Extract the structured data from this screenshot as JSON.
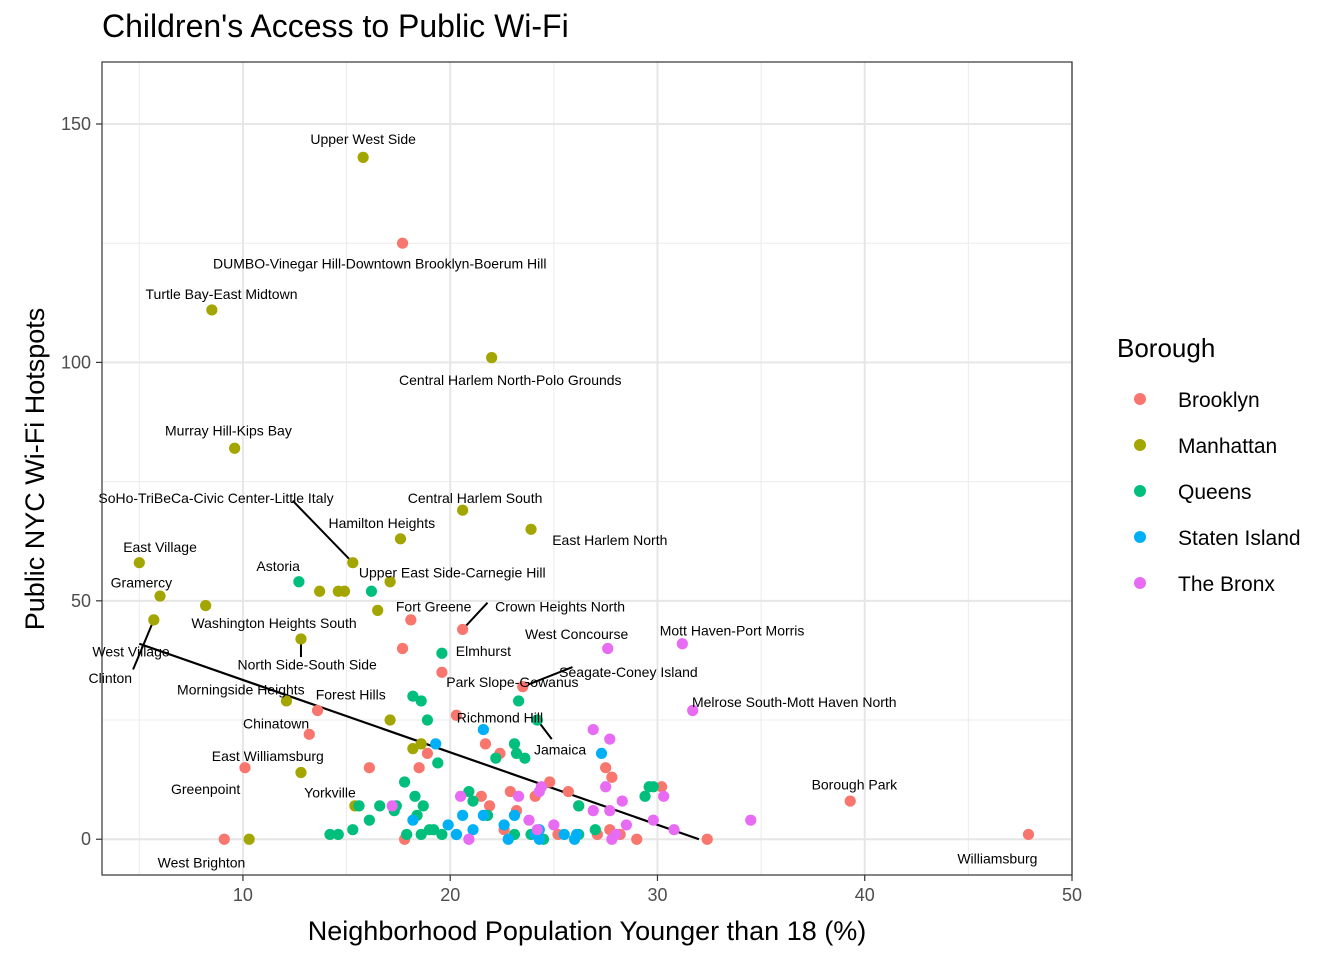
{
  "chart_data": {
    "type": "scatter",
    "title": "Children's Access to Public Wi-Fi",
    "xlabel": "Neighborhood Population Younger than 18 (%)",
    "ylabel": "Public NYC Wi-Fi Hotspots",
    "xlim": [
      3.2,
      50
    ],
    "ylim": [
      -7.5,
      163
    ],
    "x_ticks": [
      10,
      20,
      30,
      40,
      50
    ],
    "y_ticks": [
      0,
      50,
      100,
      150
    ],
    "grid": true,
    "legend": {
      "title": "Borough",
      "position": "right"
    },
    "colors": {
      "Brooklyn": "#F8766D",
      "Manhattan": "#A3A500",
      "Queens": "#00BF7D",
      "Staten Island": "#00B0F6",
      "The Bronx": "#E76BF3"
    },
    "series": [
      {
        "name": "Brooklyn",
        "points": [
          [
            17.7,
            125
          ],
          [
            18.1,
            46
          ],
          [
            17.7,
            40
          ],
          [
            19.6,
            35
          ],
          [
            20.6,
            44
          ],
          [
            23.5,
            32
          ],
          [
            20.3,
            26
          ],
          [
            13.6,
            27
          ],
          [
            13.2,
            22
          ],
          [
            16.1,
            15
          ],
          [
            10.1,
            15
          ],
          [
            9.1,
            0
          ],
          [
            18.9,
            18
          ],
          [
            18.5,
            15
          ],
          [
            21.7,
            20
          ],
          [
            22.4,
            18
          ],
          [
            21.5,
            9
          ],
          [
            21.9,
            7
          ],
          [
            22.9,
            10
          ],
          [
            23.2,
            6
          ],
          [
            24.1,
            9
          ],
          [
            24.8,
            12
          ],
          [
            25.7,
            10
          ],
          [
            27.5,
            15
          ],
          [
            27.8,
            13
          ],
          [
            26.2,
            7
          ],
          [
            27.1,
            1
          ],
          [
            27.7,
            2
          ],
          [
            28.2,
            1
          ],
          [
            29.0,
            0
          ],
          [
            30.2,
            11
          ],
          [
            32.4,
            0
          ],
          [
            39.3,
            8
          ],
          [
            47.9,
            1
          ],
          [
            17.8,
            0
          ],
          [
            22.6,
            2
          ],
          [
            25.2,
            1
          ]
        ]
      },
      {
        "name": "Manhattan",
        "points": [
          [
            15.8,
            143
          ],
          [
            8.5,
            111
          ],
          [
            22.0,
            101
          ],
          [
            9.6,
            82
          ],
          [
            20.6,
            69
          ],
          [
            23.9,
            65
          ],
          [
            17.6,
            63
          ],
          [
            15.3,
            58
          ],
          [
            5.0,
            58
          ],
          [
            6.0,
            51
          ],
          [
            8.2,
            49
          ],
          [
            5.7,
            46
          ],
          [
            12.8,
            42
          ],
          [
            13.7,
            52
          ],
          [
            14.6,
            52
          ],
          [
            14.9,
            52
          ],
          [
            17.1,
            54
          ],
          [
            16.5,
            48
          ],
          [
            12.1,
            29
          ],
          [
            17.1,
            25
          ],
          [
            18.2,
            19
          ],
          [
            18.6,
            20
          ],
          [
            12.8,
            14
          ],
          [
            15.4,
            7
          ],
          [
            10.3,
            0
          ]
        ]
      },
      {
        "name": "Queens",
        "points": [
          [
            12.7,
            54
          ],
          [
            16.2,
            52
          ],
          [
            19.6,
            39
          ],
          [
            18.2,
            30
          ],
          [
            18.6,
            29
          ],
          [
            23.3,
            29
          ],
          [
            24.2,
            25
          ],
          [
            18.9,
            25
          ],
          [
            19.4,
            16
          ],
          [
            17.8,
            12
          ],
          [
            18.3,
            9
          ],
          [
            18.7,
            7
          ],
          [
            16.6,
            7
          ],
          [
            17.3,
            6
          ],
          [
            17.4,
            7
          ],
          [
            16.1,
            4
          ],
          [
            15.6,
            7
          ],
          [
            14.2,
            1
          ],
          [
            14.6,
            1
          ],
          [
            15.3,
            2
          ],
          [
            17.9,
            1
          ],
          [
            18.4,
            5
          ],
          [
            18.6,
            1
          ],
          [
            19.0,
            2
          ],
          [
            19.6,
            1
          ],
          [
            20.3,
            1
          ],
          [
            21.1,
            8
          ],
          [
            21.8,
            5
          ],
          [
            22.2,
            17
          ],
          [
            23.1,
            20
          ],
          [
            23.2,
            18
          ],
          [
            23.6,
            17
          ],
          [
            23.1,
            1
          ],
          [
            23.9,
            1
          ],
          [
            24.5,
            0
          ],
          [
            26.2,
            7
          ],
          [
            27.0,
            2
          ],
          [
            26.2,
            1
          ],
          [
            29.4,
            9
          ],
          [
            29.6,
            11
          ],
          [
            29.8,
            11
          ],
          [
            20.9,
            10
          ],
          [
            19.2,
            2
          ]
        ]
      },
      {
        "name": "Staten Island",
        "points": [
          [
            21.6,
            23
          ],
          [
            19.3,
            20
          ],
          [
            27.3,
            18
          ],
          [
            19.9,
            3
          ],
          [
            20.6,
            5
          ],
          [
            21.6,
            5
          ],
          [
            22.6,
            3
          ],
          [
            23.1,
            5
          ],
          [
            22.8,
            0
          ],
          [
            24.3,
            0
          ],
          [
            25.5,
            1
          ],
          [
            26.0,
            0
          ],
          [
            18.2,
            4
          ],
          [
            20.3,
            1
          ],
          [
            21.1,
            2
          ],
          [
            24.1,
            1
          ],
          [
            26.1,
            1
          ],
          [
            24.3,
            2
          ]
        ]
      },
      {
        "name": "The Bronx",
        "points": [
          [
            31.2,
            41
          ],
          [
            27.6,
            40
          ],
          [
            31.7,
            27
          ],
          [
            26.9,
            23
          ],
          [
            27.7,
            21
          ],
          [
            24.3,
            10
          ],
          [
            24.4,
            11
          ],
          [
            23.3,
            9
          ],
          [
            27.5,
            11
          ],
          [
            27.7,
            6
          ],
          [
            28.3,
            8
          ],
          [
            29.8,
            4
          ],
          [
            30.3,
            9
          ],
          [
            30.8,
            2
          ],
          [
            34.5,
            4
          ],
          [
            25.0,
            3
          ],
          [
            23.8,
            4
          ],
          [
            24.2,
            2
          ],
          [
            26.9,
            6
          ],
          [
            27.8,
            0
          ],
          [
            28.0,
            1
          ],
          [
            17.2,
            7
          ],
          [
            20.5,
            9
          ],
          [
            20.9,
            0
          ],
          [
            28.5,
            3
          ]
        ]
      }
    ],
    "trend_line": {
      "x": [
        5.0,
        32.0
      ],
      "y": [
        41.0,
        0.0
      ]
    },
    "annotations": [
      {
        "text": "Upper West Side",
        "x": 15.8,
        "y": 143,
        "lx": 15.8,
        "ly": 146.8,
        "anchor": "middle",
        "leader": false
      },
      {
        "text": "DUMBO-Vinegar Hill-Downtown Brooklyn-Boerum Hill",
        "x": 17.7,
        "y": 125,
        "lx": 16.6,
        "ly": 120.7,
        "anchor": "middle",
        "leader": false
      },
      {
        "text": "Turtle Bay-East Midtown",
        "x": 8.5,
        "y": 111,
        "lx": 8.5,
        "ly": 114.3,
        "anchor": "start",
        "lx0": 5.3,
        "leader": false
      },
      {
        "text": "Central Harlem North-Polo Grounds",
        "x": 22.0,
        "y": 101,
        "lx": 22.9,
        "ly": 96.3,
        "anchor": "middle",
        "leader": false
      },
      {
        "text": "Murray Hill-Kips Bay",
        "x": 9.6,
        "y": 82,
        "lx": 9.3,
        "ly": 85.7,
        "anchor": "middle",
        "leader": false
      },
      {
        "text": "Central Harlem South",
        "x": 20.6,
        "y": 69,
        "lx": 21.2,
        "ly": 71.6,
        "anchor": "middle",
        "leader": false
      },
      {
        "text": "East Harlem North",
        "x": 23.9,
        "y": 65,
        "lx": 27.7,
        "ly": 62.8,
        "anchor": "middle",
        "leader": false
      },
      {
        "text": "SoHo-TriBeCa-Civic Center-Little Italy",
        "x": 15.3,
        "y": 58,
        "lx": 8.7,
        "ly": 71.6,
        "anchor": "middle",
        "leader": true,
        "ex": 12.4,
        "ey": 71.0
      },
      {
        "text": "Hamilton Heights",
        "x": 17.6,
        "y": 63,
        "lx": 16.7,
        "ly": 66.3,
        "anchor": "middle",
        "leader": false
      },
      {
        "text": "Upper East Side-Carnegie Hill",
        "x": 15.3,
        "y": 58,
        "lx": 20.1,
        "ly": 55.9,
        "anchor": "middle",
        "leader": false
      },
      {
        "text": "East Village",
        "x": 5.0,
        "y": 58,
        "lx": 6.0,
        "ly": 61.3,
        "anchor": "middle",
        "leader": false
      },
      {
        "text": "Astoria",
        "x": 12.7,
        "y": 54,
        "lx": 11.7,
        "ly": 57.3,
        "anchor": "middle",
        "leader": false
      },
      {
        "text": "Gramercy",
        "x": 6.0,
        "y": 51,
        "lx": 5.1,
        "ly": 53.8,
        "anchor": "middle",
        "leader": false
      },
      {
        "text": "Fort Greene",
        "x": 18.1,
        "y": 46,
        "lx": 19.2,
        "ly": 48.8,
        "anchor": "middle",
        "leader": false
      },
      {
        "text": "Crown Heights North",
        "x": 20.6,
        "y": 44,
        "lx": 25.3,
        "ly": 48.8,
        "anchor": "middle",
        "leader": true,
        "ex": 21.8,
        "ey": 49.6
      },
      {
        "text": "Washington Heights South",
        "x": 12.8,
        "y": 42,
        "lx": 11.5,
        "ly": 45.3,
        "anchor": "middle",
        "leader": false
      },
      {
        "text": "West Concourse",
        "x": 27.6,
        "y": 40,
        "lx": 26.1,
        "ly": 43.0,
        "anchor": "middle",
        "leader": false
      },
      {
        "text": "Mott Haven-Port Morris",
        "x": 31.2,
        "y": 41,
        "lx": 33.6,
        "ly": 43.8,
        "anchor": "middle",
        "leader": false
      },
      {
        "text": "Elmhurst",
        "x": 19.6,
        "y": 39,
        "lx": 21.6,
        "ly": 39.5,
        "anchor": "middle",
        "leader": false
      },
      {
        "text": "North Side-South Side",
        "x": 12.8,
        "y": 42,
        "lx": 13.1,
        "ly": 36.6,
        "anchor": "middle",
        "leader": true,
        "ex": 12.8,
        "ey": 38.2
      },
      {
        "text": "Seagate-Coney Island",
        "x": 23.5,
        "y": 32,
        "lx": 28.6,
        "ly": 35.1,
        "anchor": "middle",
        "leader": true,
        "ex": 25.9,
        "ey": 36.1
      },
      {
        "text": "West Village",
        "x": 5.7,
        "y": 46,
        "lx": 4.6,
        "ly": 39.4,
        "anchor": "middle",
        "leader": false
      },
      {
        "text": "Park Slope-Gowanus",
        "x": 23.5,
        "y": 32,
        "lx": 23.0,
        "ly": 33.0,
        "anchor": "middle",
        "leader": false
      },
      {
        "text": "Clinton",
        "x": 5.7,
        "y": 46,
        "lx": 3.6,
        "ly": 33.8,
        "anchor": "middle",
        "leader": true,
        "ex": 4.7,
        "ey": 35.6
      },
      {
        "text": "Morningside Heights",
        "x": 12.1,
        "y": 29,
        "lx": 9.9,
        "ly": 31.4,
        "anchor": "middle",
        "leader": false
      },
      {
        "text": "Forest Hills",
        "x": 18.2,
        "y": 30,
        "lx": 15.2,
        "ly": 30.4,
        "anchor": "middle",
        "leader": false
      },
      {
        "text": "Melrose South-Mott Haven North",
        "x": 31.7,
        "y": 27,
        "lx": 36.6,
        "ly": 28.8,
        "anchor": "middle",
        "leader": false
      },
      {
        "text": "Richmond Hill",
        "x": 24.2,
        "y": 25,
        "lx": 22.4,
        "ly": 25.5,
        "anchor": "middle",
        "leader": false
      },
      {
        "text": "Chinatown",
        "x": 13.2,
        "y": 22,
        "lx": 11.6,
        "ly": 24.3,
        "anchor": "middle",
        "leader": false
      },
      {
        "text": "Jamaica",
        "x": 24.2,
        "y": 25,
        "lx": 25.3,
        "ly": 18.8,
        "anchor": "middle",
        "leader": true,
        "ex": 24.9,
        "ey": 21.0
      },
      {
        "text": "East Williamsburg",
        "x": 10.1,
        "y": 15,
        "lx": 11.2,
        "ly": 17.5,
        "anchor": "middle",
        "leader": false
      },
      {
        "text": "Greenpoint",
        "x": 10.1,
        "y": 15,
        "lx": 8.2,
        "ly": 10.5,
        "anchor": "middle",
        "leader": false
      },
      {
        "text": "Yorkville",
        "x": 15.4,
        "y": 7,
        "lx": 14.2,
        "ly": 9.8,
        "anchor": "middle",
        "leader": false
      },
      {
        "text": "Borough Park",
        "x": 39.3,
        "y": 8,
        "lx": 39.5,
        "ly": 11.5,
        "anchor": "middle",
        "leader": false
      },
      {
        "text": "West Brighton",
        "x": 9.1,
        "y": 0,
        "lx": 8.0,
        "ly": -4.9,
        "anchor": "middle",
        "leader": false
      },
      {
        "text": "Williamsburg",
        "x": 47.9,
        "y": 1,
        "lx": 46.4,
        "ly": -4.0,
        "anchor": "middle",
        "leader": false
      }
    ]
  }
}
